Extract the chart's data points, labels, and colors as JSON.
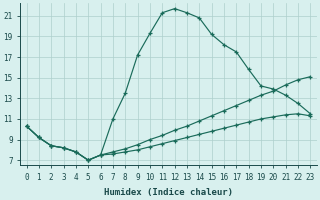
{
  "xlabel": "Humidex (Indice chaleur)",
  "xlim": [
    -0.5,
    23.5
  ],
  "ylim": [
    6.5,
    22.2
  ],
  "xticks": [
    0,
    1,
    2,
    3,
    4,
    5,
    6,
    7,
    8,
    9,
    10,
    11,
    12,
    13,
    14,
    15,
    16,
    17,
    18,
    19,
    20,
    21,
    22,
    23
  ],
  "yticks": [
    7,
    9,
    11,
    13,
    15,
    17,
    19,
    21
  ],
  "line_color": "#1a6b5a",
  "bg_color": "#d8f0ee",
  "grid_color": "#aed0cc",
  "series_top": [
    10.3,
    9.2,
    8.4,
    8.2,
    7.8,
    7.0,
    7.5,
    11.0,
    13.5,
    17.2,
    19.3,
    21.3,
    21.7,
    21.3,
    20.8,
    19.2,
    18.2,
    17.5,
    15.8,
    14.2,
    13.9,
    13.3,
    12.5,
    11.5
  ],
  "series_mid": [
    10.3,
    9.2,
    8.4,
    8.2,
    7.8,
    7.0,
    7.5,
    7.8,
    8.1,
    8.5,
    9.0,
    9.4,
    9.9,
    10.3,
    10.8,
    11.3,
    11.8,
    12.3,
    12.8,
    13.3,
    13.7,
    14.3,
    14.8,
    15.1
  ],
  "series_bot": [
    10.3,
    9.2,
    8.4,
    8.2,
    7.8,
    7.0,
    7.5,
    7.6,
    7.8,
    8.0,
    8.3,
    8.6,
    8.9,
    9.2,
    9.5,
    9.8,
    10.1,
    10.4,
    10.7,
    11.0,
    11.2,
    11.4,
    11.5,
    11.3
  ]
}
